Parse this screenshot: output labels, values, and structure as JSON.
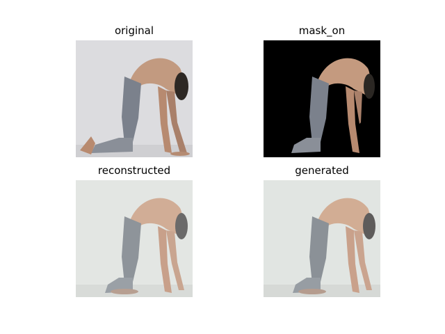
{
  "figure": {
    "panels": [
      {
        "title": "original",
        "background": "#d9d9dc"
      },
      {
        "title": "mask_on",
        "background": "#000000"
      },
      {
        "title": "reconstructed",
        "background": "#e2e5e2"
      },
      {
        "title": "generated",
        "background": "#e0e4e1"
      }
    ]
  },
  "colors": {
    "skin": "#c49a7f",
    "skin_dark": "#8b6249",
    "jeans": "#7f8590",
    "jeans_dark": "#5b616b",
    "hair": "#2b2723",
    "floor_shadow": "#b8b7ba"
  }
}
